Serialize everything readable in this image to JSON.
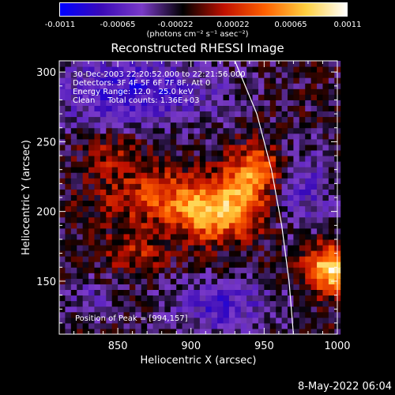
{
  "chart_data": {
    "type": "heatmap",
    "title": "Reconstructed RHESSI Image",
    "xlabel": "Heliocentric X (arcsec)",
    "ylabel": "Heliocentric Y (arcsec)",
    "xlim": [
      810,
      1000
    ],
    "ylim": [
      112,
      308
    ],
    "x_ticks": [
      850,
      900,
      950,
      1000
    ],
    "y_ticks": [
      150,
      200,
      250,
      300
    ],
    "colorbar": {
      "ticks": [
        "-0.0011",
        "-0.00065",
        "-0.00022",
        "0.00022",
        "0.00065",
        "0.0011"
      ],
      "tick_values": [
        -0.0011,
        -0.00065,
        -0.00022,
        0.00022,
        0.00065,
        0.0011
      ],
      "range": [
        -0.0011,
        0.0011
      ],
      "units": "(photons cm⁻² s⁻¹ asec⁻²)",
      "colormap": [
        "#0000ff",
        "#3a0ab8",
        "#7a3ac8",
        "#000000",
        "#c01000",
        "#ff6000",
        "#ffd040",
        "#ffffff"
      ]
    },
    "annotations": [
      "30-Dec-2003 22:20:52.000 to 22:21:56.000",
      "Detectors: 3F 4F 5F 6F 7F 8F, Att 0",
      "Energy Range: 12.0 - 25.0 keV",
      "Clean     Total counts: 1.36E+03"
    ],
    "peak_label": "Position of Peak = [994,157]",
    "peak": [
      994,
      157
    ],
    "limb_curve": [
      [
        930,
        308
      ],
      [
        945,
        270
      ],
      [
        955,
        230
      ],
      [
        962,
        190
      ],
      [
        967,
        150
      ],
      [
        970,
        112
      ]
    ],
    "sources": [
      {
        "x": 880,
        "y": 208,
        "amp": 0.00055,
        "sx": 30,
        "sy": 14
      },
      {
        "x": 912,
        "y": 195,
        "amp": 0.0007,
        "sx": 16,
        "sy": 14
      },
      {
        "x": 935,
        "y": 215,
        "amp": 0.00065,
        "sx": 12,
        "sy": 18
      },
      {
        "x": 948,
        "y": 230,
        "amp": 0.0005,
        "sx": 10,
        "sy": 10
      },
      {
        "x": 994,
        "y": 157,
        "amp": 0.0011,
        "sx": 12,
        "sy": 12
      },
      {
        "x": 860,
        "y": 170,
        "amp": 0.00035,
        "sx": 15,
        "sy": 10
      },
      {
        "x": 845,
        "y": 240,
        "amp": 0.0003,
        "sx": 14,
        "sy": 10
      }
    ],
    "negative_regions": [
      {
        "x": 860,
        "y": 285,
        "amp": -0.0006,
        "sx": 40,
        "sy": 18
      },
      {
        "x": 920,
        "y": 130,
        "amp": -0.0005,
        "sx": 25,
        "sy": 14
      },
      {
        "x": 975,
        "y": 215,
        "amp": -0.0004,
        "sx": 15,
        "sy": 20
      },
      {
        "x": 830,
        "y": 135,
        "amp": -0.0003,
        "sx": 12,
        "sy": 10
      }
    ]
  },
  "footer": {
    "date": "8-May-2022 06:04"
  }
}
